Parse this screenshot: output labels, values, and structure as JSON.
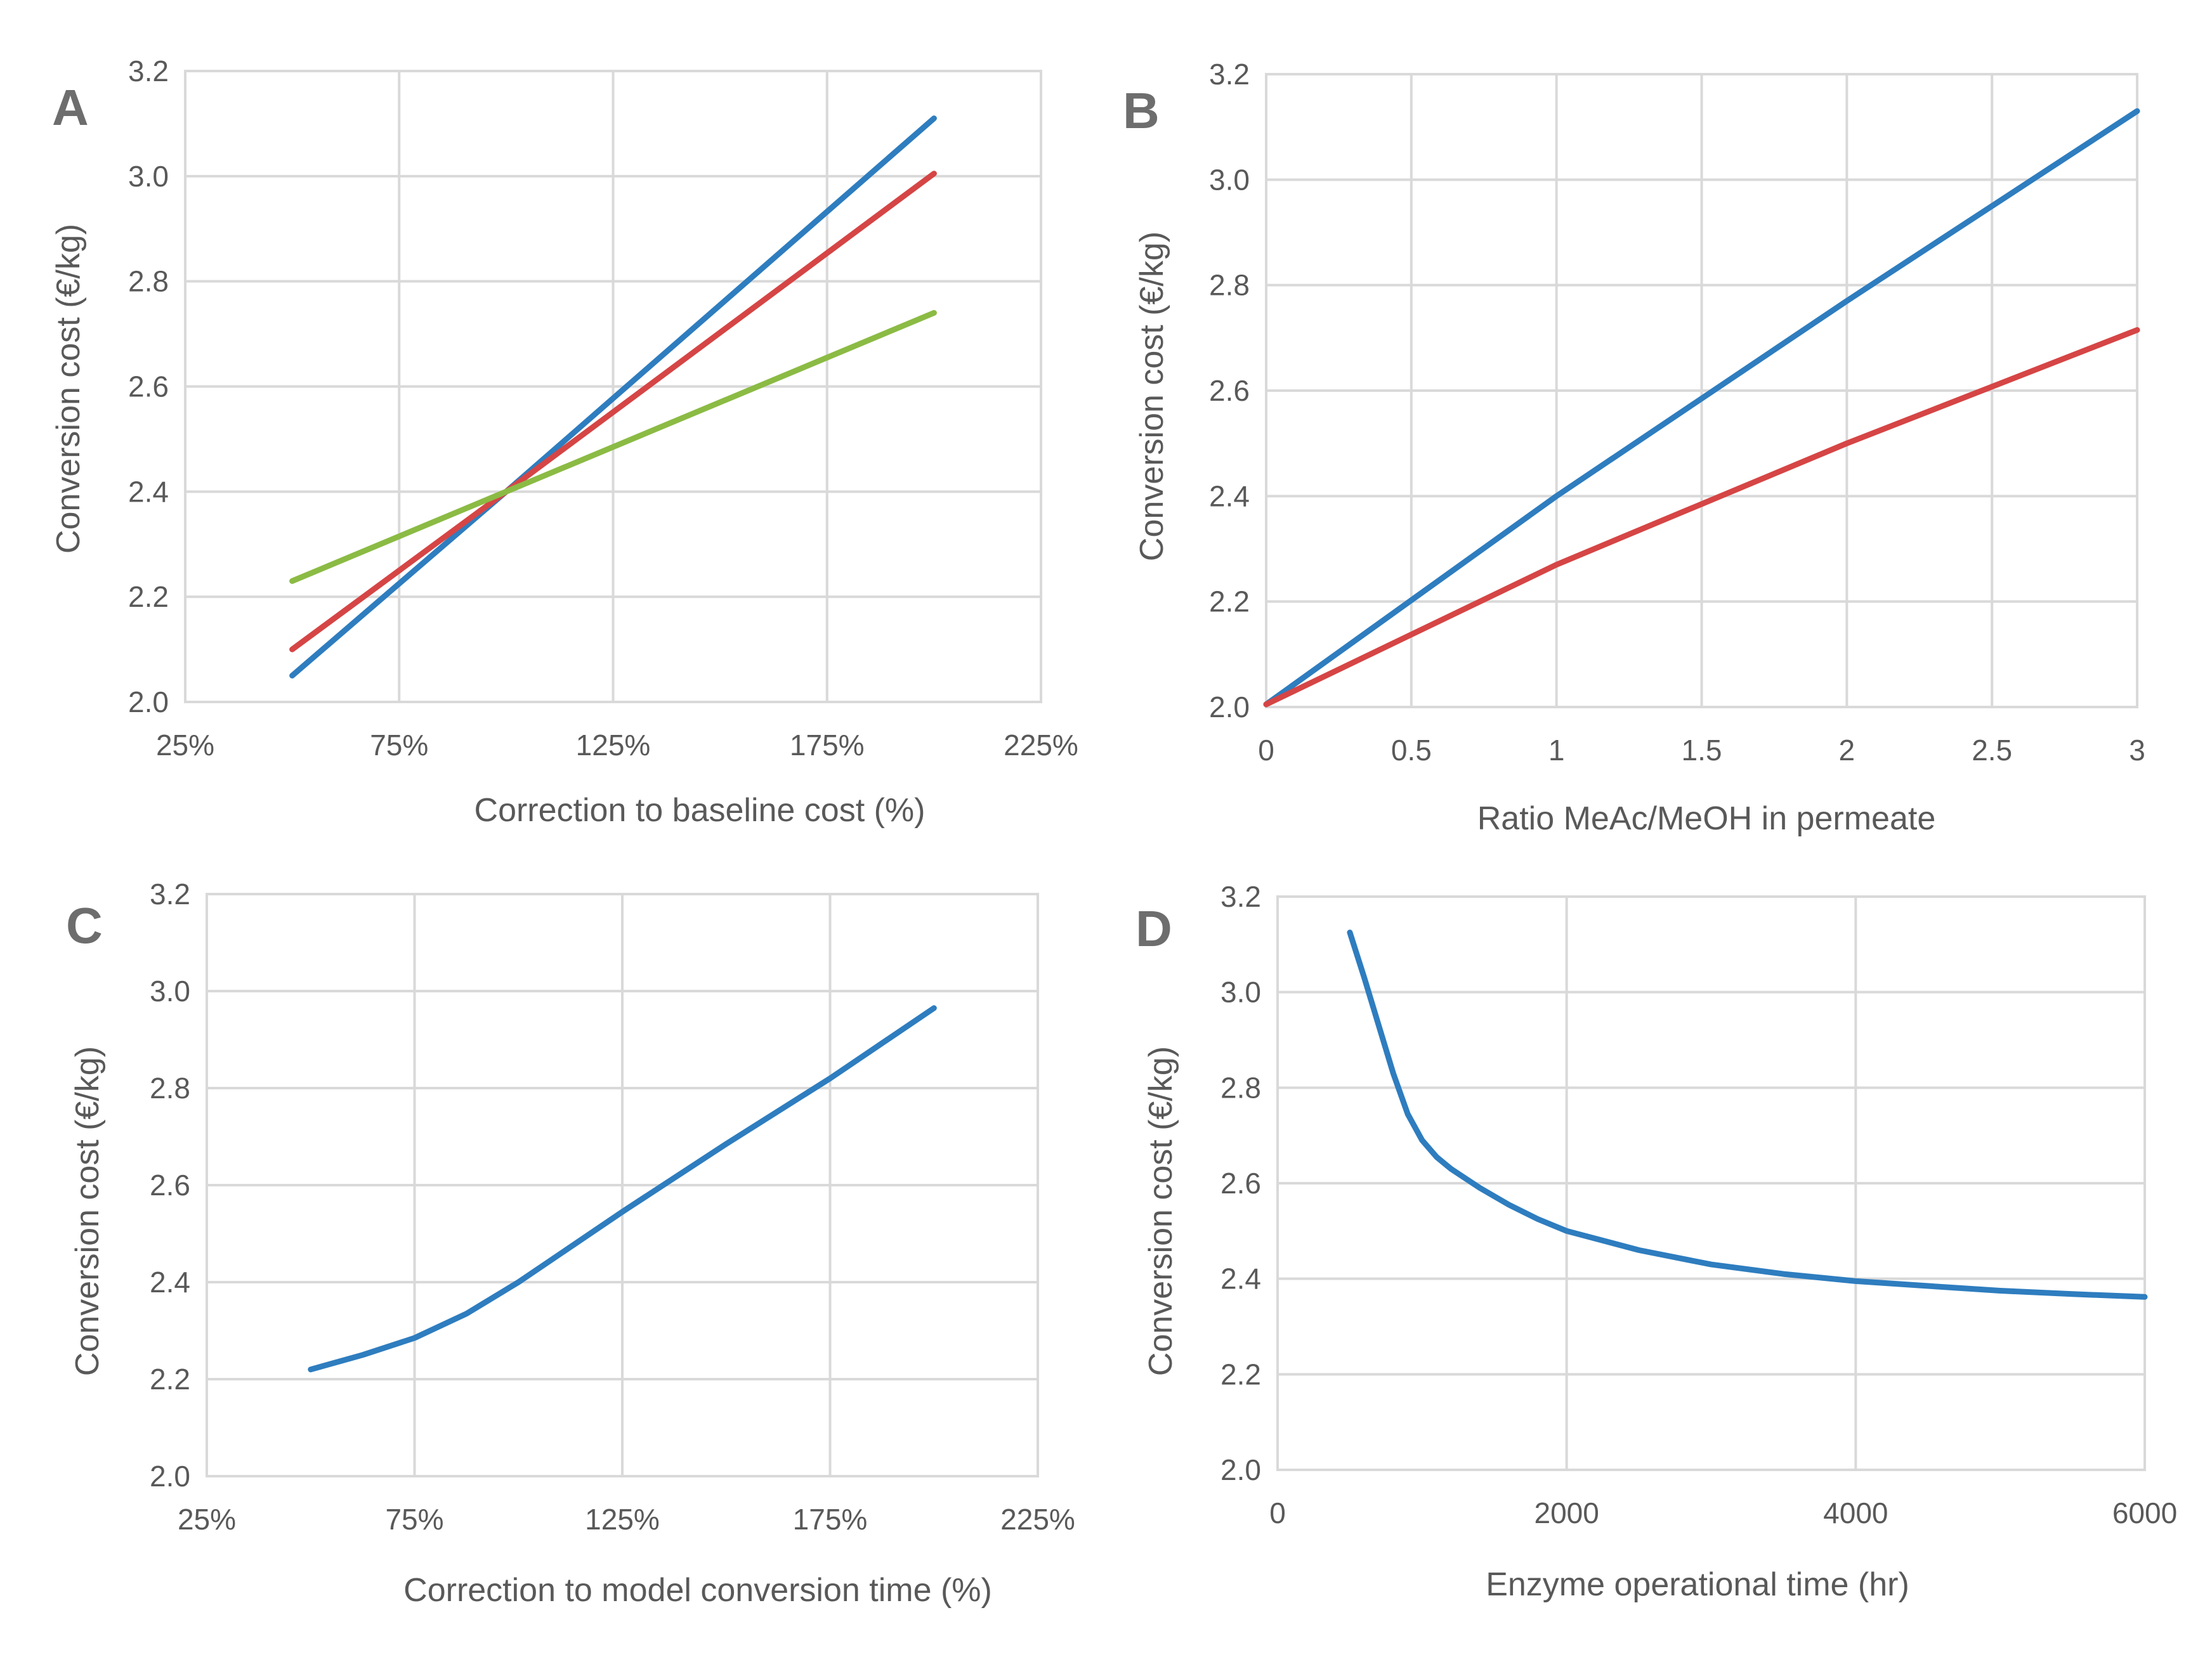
{
  "colors": {
    "blue": "#2e7dbf",
    "red": "#d64545",
    "green": "#8bbb44"
  },
  "chart_data": [
    {
      "type": "line",
      "panel": "A",
      "title": "",
      "xlabel": "Correction to baseline cost (%)",
      "ylabel": "Conversion cost (€/kg)",
      "xlim": [
        25,
        225
      ],
      "ylim": [
        2.0,
        3.2
      ],
      "xticks": [
        25,
        75,
        125,
        175,
        225
      ],
      "xtick_labels": [
        "25%",
        "75%",
        "125%",
        "175%",
        "225%"
      ],
      "yticks": [
        2.0,
        2.2,
        2.4,
        2.6,
        2.8,
        3.0,
        3.2
      ],
      "ytick_labels": [
        "2.0",
        "2.2",
        "2.4",
        "2.6",
        "2.8",
        "3.0",
        "3.2"
      ],
      "grid": true,
      "series": [
        {
          "name": "series-1",
          "color": "#2e7dbf",
          "x": [
            50,
            100,
            200
          ],
          "y": [
            2.05,
            2.4,
            3.11
          ]
        },
        {
          "name": "series-2",
          "color": "#d64545",
          "x": [
            50,
            100,
            200
          ],
          "y": [
            2.1,
            2.4,
            3.005
          ]
        },
        {
          "name": "series-3",
          "color": "#8bbb44",
          "x": [
            50,
            100,
            200
          ],
          "y": [
            2.23,
            2.4,
            2.74
          ]
        }
      ]
    },
    {
      "type": "line",
      "panel": "B",
      "title": "",
      "xlabel": "Ratio MeAc/MeOH in permeate",
      "ylabel": "Conversion cost (€/kg)",
      "xlim": [
        0,
        3
      ],
      "ylim": [
        2.0,
        3.2
      ],
      "xticks": [
        0,
        0.5,
        1,
        1.5,
        2,
        2.5,
        3
      ],
      "xtick_labels": [
        "0",
        "0.5",
        "1",
        "1.5",
        "2",
        "2.5",
        "3"
      ],
      "yticks": [
        2.0,
        2.2,
        2.4,
        2.6,
        2.8,
        3.0,
        3.2
      ],
      "ytick_labels": [
        "2.0",
        "2.2",
        "2.4",
        "2.6",
        "2.8",
        "3.0",
        "3.2"
      ],
      "grid": true,
      "series": [
        {
          "name": "series-1",
          "color": "#2e7dbf",
          "x": [
            0,
            1,
            2,
            3
          ],
          "y": [
            2.005,
            2.4,
            2.77,
            3.13
          ]
        },
        {
          "name": "series-2",
          "color": "#d64545",
          "x": [
            0,
            1,
            2,
            3
          ],
          "y": [
            2.005,
            2.27,
            2.5,
            2.715
          ]
        }
      ]
    },
    {
      "type": "line",
      "panel": "C",
      "title": "",
      "xlabel": "Correction to model conversion time (%)",
      "ylabel": "Conversion cost (€/kg)",
      "xlim": [
        25,
        225
      ],
      "ylim": [
        2.0,
        3.2
      ],
      "xticks": [
        25,
        75,
        125,
        175,
        225
      ],
      "xtick_labels": [
        "25%",
        "75%",
        "125%",
        "175%",
        "225%"
      ],
      "yticks": [
        2.0,
        2.2,
        2.4,
        2.6,
        2.8,
        3.0,
        3.2
      ],
      "ytick_labels": [
        "2.0",
        "2.2",
        "2.4",
        "2.6",
        "2.8",
        "3.0",
        "3.2"
      ],
      "grid": true,
      "series": [
        {
          "name": "series-1",
          "color": "#2e7dbf",
          "x": [
            50,
            62.5,
            75,
            87.5,
            100,
            125,
            150,
            175,
            200
          ],
          "y": [
            2.22,
            2.25,
            2.285,
            2.335,
            2.4,
            2.545,
            2.685,
            2.82,
            2.965
          ]
        }
      ]
    },
    {
      "type": "line",
      "panel": "D",
      "title": "",
      "xlabel": "Enzyme operational time (hr)",
      "ylabel": "Conversion cost (€/kg)",
      "xlim": [
        0,
        6000
      ],
      "ylim": [
        2.0,
        3.2
      ],
      "xticks": [
        0,
        2000,
        4000,
        6000
      ],
      "xtick_labels": [
        "0",
        "2000",
        "4000",
        "6000"
      ],
      "yticks": [
        2.0,
        2.2,
        2.4,
        2.6,
        2.8,
        3.0,
        3.2
      ],
      "ytick_labels": [
        "2.0",
        "2.2",
        "2.4",
        "2.6",
        "2.8",
        "3.0",
        "3.2"
      ],
      "grid": true,
      "series": [
        {
          "name": "series-1",
          "color": "#2e7dbf",
          "x": [
            500,
            600,
            700,
            800,
            900,
            1000,
            1100,
            1200,
            1400,
            1600,
            1800,
            2000,
            2500,
            3000,
            3500,
            4000,
            4500,
            5000,
            5500,
            6000
          ],
          "y": [
            3.125,
            3.03,
            2.93,
            2.83,
            2.745,
            2.69,
            2.655,
            2.63,
            2.59,
            2.555,
            2.525,
            2.5,
            2.46,
            2.43,
            2.41,
            2.395,
            2.385,
            2.375,
            2.368,
            2.362
          ]
        }
      ]
    }
  ]
}
